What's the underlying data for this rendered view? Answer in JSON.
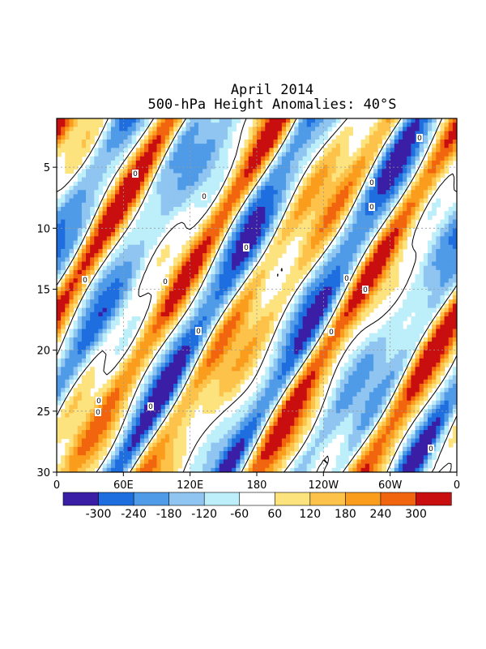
{
  "chart_data": {
    "type": "heatmap",
    "title": "April 2014",
    "subtitle": "500-hPa Height Anomalies: 40°S",
    "x_ticks": [
      "0",
      "60E",
      "120E",
      "180",
      "120W",
      "60W",
      "0"
    ],
    "y_ticks": [
      "5",
      "10",
      "15",
      "20",
      "25",
      "30"
    ],
    "xlim": [
      0,
      360
    ],
    "ylim": [
      1,
      30
    ],
    "y_reversed": true,
    "grid": true,
    "contour_level": 0,
    "contour_label": "0",
    "colorbar": {
      "labels": [
        "-300",
        "-240",
        "-180",
        "-120",
        "-60",
        "60",
        "120",
        "180",
        "240",
        "300"
      ],
      "colors": [
        "#3a1fa6",
        "#1e6ee0",
        "#4f9be8",
        "#8fc5f0",
        "#bdeffa",
        "#ffffff",
        "#fde37e",
        "#fcc24a",
        "#fb9d1c",
        "#f2650f",
        "#c80e0e"
      ]
    }
  }
}
